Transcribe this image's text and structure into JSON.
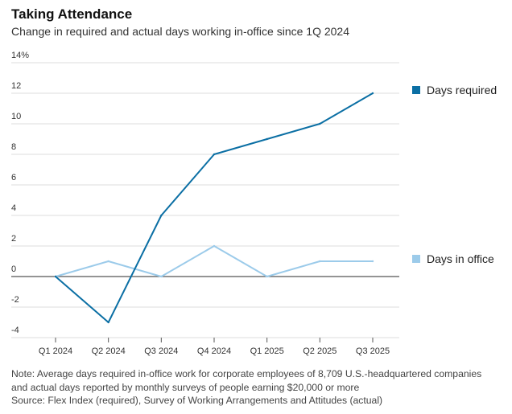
{
  "header": {
    "title": "Taking Attendance",
    "subtitle": "Change in required and actual days working in-office since 1Q 2024"
  },
  "chart_data": {
    "type": "line",
    "categories": [
      "Q1 2024",
      "Q2 2024",
      "Q3 2024",
      "Q4 2024",
      "Q1 2025",
      "Q2 2025",
      "Q3 2025"
    ],
    "series": [
      {
        "name": "Days required",
        "values": [
          0,
          -3,
          4,
          8,
          9,
          10,
          12
        ],
        "color": "#0b6fa4"
      },
      {
        "name": "Days in office",
        "values": [
          0,
          1,
          0,
          2,
          0,
          1,
          1
        ],
        "color": "#9ccbea"
      }
    ],
    "ylim": [
      -4,
      14
    ],
    "yticks": [
      "14%",
      "12",
      "10",
      "8",
      "6",
      "4",
      "2",
      "0",
      "-2",
      "-4"
    ],
    "grid": true,
    "legend_placement": "right"
  },
  "footer": {
    "note_line1": "Note: Average days required in-office work for corporate employees of 8,709 U.S.-headquartered companies",
    "note_line2": "and actual days reported by monthly surveys of people earning $20,000 or more",
    "source": "Source: Flex Index (required), Survey of Working Arrangements and Attitudes (actual)"
  }
}
